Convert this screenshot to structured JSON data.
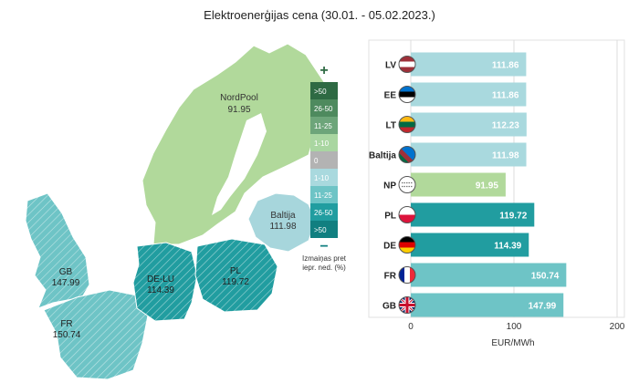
{
  "title": "Elektroenerģijas cena (30.01. - 05.02.2023.)",
  "colors": {
    "up_dark": "#2e6a43",
    "up_mid": "#4e8a5e",
    "up_light": "#6da57a",
    "up_pale": "#a9d6a1",
    "neutral": "#b3b3b3",
    "down_pale": "#a9d9de",
    "down_light": "#6ec4c6",
    "down_mid": "#219da0",
    "down_dark": "#117f80",
    "np_region": "#b1d99b",
    "baltics_region": "#a7d6dc"
  },
  "legend": {
    "plus_symbol": "+",
    "minus_symbol": "−",
    "items": [
      ">50",
      "26-50",
      "11-25",
      "1-10",
      "0",
      "1-10",
      "11-25",
      "26-50",
      ">50"
    ],
    "caption_line1": "Izmaiņas pret",
    "caption_line2": "iepr. ned. (%)"
  },
  "map_labels": {
    "nordpool": {
      "name": "NordPool",
      "value": "91.95"
    },
    "baltija": {
      "name": "Baltija",
      "value": "111.98"
    },
    "gb": {
      "name": "GB",
      "value": "147.99"
    },
    "fr": {
      "name": "FR",
      "value": "150.74"
    },
    "de_lu": {
      "name": "DE-LU",
      "value": "114.39"
    },
    "pl": {
      "name": "PL",
      "value": "119.72"
    }
  },
  "chart_data": {
    "type": "bar",
    "orientation": "horizontal",
    "categories": [
      "LV",
      "EE",
      "LT",
      "Baltija",
      "NP",
      "PL",
      "DE",
      "FR",
      "GB"
    ],
    "values": [
      111.86,
      111.86,
      112.23,
      111.98,
      91.95,
      119.72,
      114.39,
      150.74,
      147.99
    ],
    "value_labels": [
      "111.86",
      "111.86",
      "112.23",
      "111.98",
      "91.95",
      "119.72",
      "114.39",
      "150.74",
      "147.99"
    ],
    "bar_colors": [
      "#a9d9de",
      "#a9d9de",
      "#a9d9de",
      "#a9d9de",
      "#b1d99b",
      "#219da0",
      "#219da0",
      "#6ec4c6",
      "#6ec4c6"
    ],
    "flag_icons": [
      "flag-latvia-icon",
      "flag-estonia-icon",
      "flag-lithuania-icon",
      "flag-baltics-icon",
      "nordpool-logo-icon",
      "flag-poland-icon",
      "flag-germany-icon",
      "flag-france-icon",
      "flag-uk-icon"
    ],
    "xlim": [
      0,
      200
    ],
    "xticks": [
      "0",
      "100",
      "200"
    ],
    "xlabel": "EUR/MWh",
    "grid": true
  }
}
